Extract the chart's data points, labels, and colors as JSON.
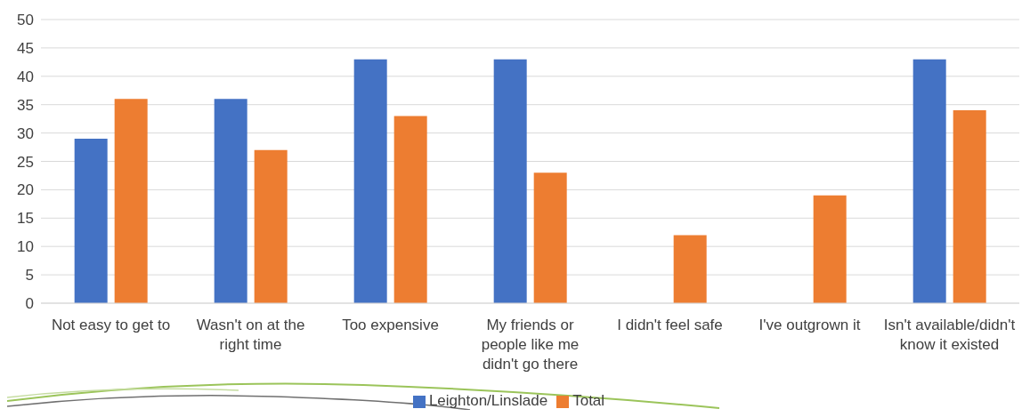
{
  "chart_data": {
    "type": "bar",
    "categories": [
      "Not easy to get to",
      "Wasn't on at the right time",
      "Too expensive",
      "My friends or people like me didn't go there",
      "I didn't feel safe",
      "I've outgrown it",
      "Isn't available/didn't know it existed"
    ],
    "series": [
      {
        "name": "Leighton/Linslade",
        "color": "#4472c4",
        "values": [
          29,
          36,
          43,
          43,
          0,
          0,
          43
        ]
      },
      {
        "name": "Total",
        "color": "#ed7d31",
        "values": [
          36,
          27,
          33,
          23,
          12,
          19,
          34
        ]
      }
    ],
    "ylim": [
      0,
      50
    ],
    "yticks": [
      0,
      5,
      10,
      15,
      20,
      25,
      30,
      35,
      40,
      45,
      50
    ],
    "grid": "y",
    "legend": "bottom"
  }
}
